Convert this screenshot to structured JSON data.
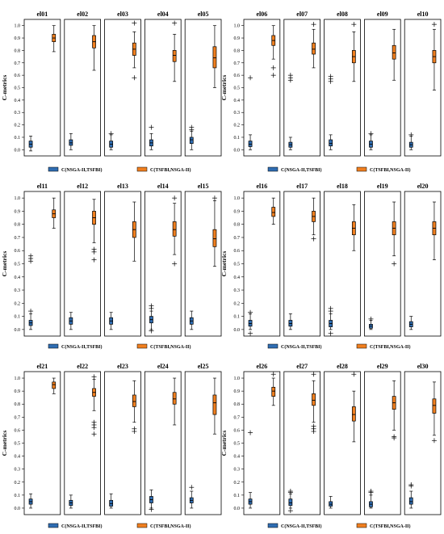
{
  "chart_data": [
    {
      "type": "box",
      "ylabel": "C-metrics",
      "yticks": [
        "0.0",
        "0.1",
        "0.2",
        "0.3",
        "0.4",
        "0.5",
        "0.6",
        "0.7",
        "0.8",
        "0.9",
        "1.0"
      ],
      "ylim": [
        -0.05,
        1.05
      ],
      "legend": [
        "C(NSGA-II,TSFBI)",
        "C(TSFBI,NSGA-II)"
      ],
      "colors": [
        "#2f6db2",
        "#f07f1f"
      ],
      "panels": [
        {
          "name": "el01",
          "a": {
            "wl": -0.01,
            "q1": 0.02,
            "med": 0.045,
            "q3": 0.07,
            "wh": 0.11,
            "fl": []
          },
          "b": {
            "wl": 0.79,
            "q1": 0.87,
            "med": 0.9,
            "q3": 0.93,
            "wh": 1.0,
            "fl": []
          }
        },
        {
          "name": "el02",
          "a": {
            "wl": 0.0,
            "q1": 0.035,
            "med": 0.055,
            "q3": 0.08,
            "wh": 0.13,
            "fl": []
          },
          "b": {
            "wl": 0.64,
            "q1": 0.82,
            "med": 0.87,
            "q3": 0.92,
            "wh": 1.0,
            "fl": []
          }
        },
        {
          "name": "el03",
          "a": {
            "wl": 0.0,
            "q1": 0.02,
            "med": 0.045,
            "q3": 0.07,
            "wh": 0.12,
            "fl": [
              0.13
            ]
          },
          "b": {
            "wl": 0.66,
            "q1": 0.76,
            "med": 0.81,
            "q3": 0.86,
            "wh": 0.95,
            "fl": [
              0.58,
              1.02
            ]
          }
        },
        {
          "name": "el04",
          "a": {
            "wl": 0.0,
            "q1": 0.03,
            "med": 0.055,
            "q3": 0.08,
            "wh": 0.13,
            "fl": [
              0.18
            ]
          },
          "b": {
            "wl": 0.55,
            "q1": 0.71,
            "med": 0.76,
            "q3": 0.8,
            "wh": 0.93,
            "fl": [
              1.02
            ]
          }
        },
        {
          "name": "el05",
          "a": {
            "wl": 0.0,
            "q1": 0.05,
            "med": 0.08,
            "q3": 0.1,
            "wh": 0.15,
            "fl": [
              0.16,
              0.18
            ]
          },
          "b": {
            "wl": 0.5,
            "q1": 0.66,
            "med": 0.74,
            "q3": 0.83,
            "wh": 1.0,
            "fl": []
          }
        }
      ]
    },
    {
      "type": "box",
      "ylabel": "C-metrics",
      "yticks": [
        "0.0",
        "0.1",
        "0.2",
        "0.3",
        "0.4",
        "0.5",
        "0.6",
        "0.7",
        "0.8",
        "0.9",
        "1.0"
      ],
      "ylim": [
        -0.05,
        1.05
      ],
      "legend": [
        "C(NSGA-II,TSFBI)",
        "C(TSFBI,NSGA-II)"
      ],
      "colors": [
        "#2f6db2",
        "#f07f1f"
      ],
      "panels": [
        {
          "name": "el06",
          "a": {
            "wl": 0.0,
            "q1": 0.025,
            "med": 0.045,
            "q3": 0.07,
            "wh": 0.12,
            "fl": [
              0.58
            ]
          },
          "b": {
            "wl": 0.73,
            "q1": 0.84,
            "med": 0.88,
            "q3": 0.92,
            "wh": 1.0,
            "fl": [
              0.6,
              0.66
            ]
          }
        },
        {
          "name": "el07",
          "a": {
            "wl": 0.0,
            "q1": 0.02,
            "med": 0.04,
            "q3": 0.06,
            "wh": 0.1,
            "fl": [
              0.56,
              0.58,
              0.6
            ]
          },
          "b": {
            "wl": 0.66,
            "q1": 0.77,
            "med": 0.81,
            "q3": 0.86,
            "wh": 0.97,
            "fl": [
              1.01
            ]
          }
        },
        {
          "name": "el08",
          "a": {
            "wl": 0.0,
            "q1": 0.03,
            "med": 0.05,
            "q3": 0.08,
            "wh": 0.12,
            "fl": [
              0.55,
              0.57,
              0.59
            ]
          },
          "b": {
            "wl": 0.55,
            "q1": 0.7,
            "med": 0.75,
            "q3": 0.8,
            "wh": 0.95,
            "fl": [
              1.01
            ]
          }
        },
        {
          "name": "el09",
          "a": {
            "wl": 0.0,
            "q1": 0.02,
            "med": 0.045,
            "q3": 0.07,
            "wh": 0.12,
            "fl": [
              0.13
            ]
          },
          "b": {
            "wl": 0.56,
            "q1": 0.73,
            "med": 0.78,
            "q3": 0.84,
            "wh": 0.97,
            "fl": []
          }
        },
        {
          "name": "el10",
          "a": {
            "wl": 0.0,
            "q1": 0.02,
            "med": 0.04,
            "q3": 0.06,
            "wh": 0.11,
            "fl": [
              0.12
            ]
          },
          "b": {
            "wl": 0.48,
            "q1": 0.7,
            "med": 0.75,
            "q3": 0.8,
            "wh": 0.97,
            "fl": [
              1.01
            ]
          }
        }
      ]
    },
    {
      "type": "box",
      "ylabel": "C-metrics",
      "yticks": [
        "0.0",
        "0.1",
        "0.2",
        "0.3",
        "0.4",
        "0.5",
        "0.6",
        "0.7",
        "0.8",
        "0.9",
        "1.0"
      ],
      "ylim": [
        -0.05,
        1.05
      ],
      "legend": [
        "C(NSGA-II,TSFBI)",
        "C(TSFBI,NSGA-II)"
      ],
      "colors": [
        "#2f6db2",
        "#f07f1f"
      ],
      "panels": [
        {
          "name": "el11",
          "a": {
            "wl": 0.0,
            "q1": 0.03,
            "med": 0.05,
            "q3": 0.07,
            "wh": 0.12,
            "fl": [
              0.14,
              0.52,
              0.54,
              0.56
            ]
          },
          "b": {
            "wl": 0.77,
            "q1": 0.85,
            "med": 0.88,
            "q3": 0.91,
            "wh": 1.0,
            "fl": []
          }
        },
        {
          "name": "el12",
          "a": {
            "wl": 0.0,
            "q1": 0.04,
            "med": 0.065,
            "q3": 0.09,
            "wh": 0.13,
            "fl": []
          },
          "b": {
            "wl": 0.66,
            "q1": 0.8,
            "med": 0.85,
            "q3": 0.9,
            "wh": 0.99,
            "fl": [
              0.53,
              0.59,
              0.61
            ]
          }
        },
        {
          "name": "el13",
          "a": {
            "wl": 0.0,
            "q1": 0.04,
            "med": 0.065,
            "q3": 0.09,
            "wh": 0.13,
            "fl": []
          },
          "b": {
            "wl": 0.52,
            "q1": 0.7,
            "med": 0.76,
            "q3": 0.82,
            "wh": 0.97,
            "fl": []
          }
        },
        {
          "name": "el14",
          "a": {
            "wl": 0.0,
            "q1": 0.05,
            "med": 0.075,
            "q3": 0.1,
            "wh": 0.14,
            "fl": [
              0.16,
              0.18,
              -0.01
            ]
          },
          "b": {
            "wl": 0.57,
            "q1": 0.71,
            "med": 0.76,
            "q3": 0.82,
            "wh": 0.96,
            "fl": [
              0.5,
              1.0
            ]
          }
        },
        {
          "name": "el15",
          "a": {
            "wl": 0.0,
            "q1": 0.04,
            "med": 0.065,
            "q3": 0.09,
            "wh": 0.14,
            "fl": []
          },
          "b": {
            "wl": 0.48,
            "q1": 0.63,
            "med": 0.69,
            "q3": 0.76,
            "wh": 0.98,
            "fl": [
              1.0
            ]
          }
        }
      ]
    },
    {
      "type": "box",
      "ylabel": "C-metrics",
      "yticks": [
        "0.0",
        "0.1",
        "0.2",
        "0.3",
        "0.4",
        "0.5",
        "0.6",
        "0.7",
        "0.8",
        "0.9",
        "1.0"
      ],
      "ylim": [
        -0.05,
        1.05
      ],
      "legend": [
        "C(NSGA-II,TSFBI)",
        "C(TSFBI,NSGA-II)"
      ],
      "colors": [
        "#2f6db2",
        "#f07f1f"
      ],
      "panels": [
        {
          "name": "el16",
          "a": {
            "wl": 0.0,
            "q1": 0.025,
            "med": 0.045,
            "q3": 0.07,
            "wh": 0.12,
            "fl": [
              0.13,
              -0.03
            ]
          },
          "b": {
            "wl": 0.8,
            "q1": 0.86,
            "med": 0.89,
            "q3": 0.93,
            "wh": 1.0,
            "fl": []
          }
        },
        {
          "name": "el17",
          "a": {
            "wl": 0.0,
            "q1": 0.025,
            "med": 0.045,
            "q3": 0.07,
            "wh": 0.12,
            "fl": []
          },
          "b": {
            "wl": 0.72,
            "q1": 0.82,
            "med": 0.86,
            "q3": 0.9,
            "wh": 1.0,
            "fl": [
              0.69
            ]
          }
        },
        {
          "name": "el18",
          "a": {
            "wl": 0.0,
            "q1": 0.02,
            "med": 0.045,
            "q3": 0.07,
            "wh": 0.12,
            "fl": [
              0.14,
              0.16,
              -0.03
            ]
          },
          "b": {
            "wl": 0.6,
            "q1": 0.72,
            "med": 0.77,
            "q3": 0.82,
            "wh": 0.95,
            "fl": []
          }
        },
        {
          "name": "el19",
          "a": {
            "wl": 0.0,
            "q1": 0.01,
            "med": 0.025,
            "q3": 0.04,
            "wh": 0.07,
            "fl": [
              0.08
            ]
          },
          "b": {
            "wl": 0.56,
            "q1": 0.72,
            "med": 0.77,
            "q3": 0.82,
            "wh": 0.97,
            "fl": [
              0.5
            ]
          }
        },
        {
          "name": "el20",
          "a": {
            "wl": 0.0,
            "q1": 0.02,
            "med": 0.04,
            "q3": 0.06,
            "wh": 0.1,
            "fl": []
          },
          "b": {
            "wl": 0.53,
            "q1": 0.72,
            "med": 0.77,
            "q3": 0.82,
            "wh": 0.97,
            "fl": []
          }
        }
      ]
    },
    {
      "type": "box",
      "ylabel": "C-metrics",
      "yticks": [
        "0.0",
        "0.1",
        "0.2",
        "0.3",
        "0.4",
        "0.5",
        "0.6",
        "0.7",
        "0.8",
        "0.9",
        "1.0"
      ],
      "ylim": [
        -0.05,
        1.05
      ],
      "legend": [
        "C(NSGA-II,TSFBI)",
        "C(TSFBI,NSGA-II)"
      ],
      "colors": [
        "#2f6db2",
        "#f07f1f"
      ],
      "panels": [
        {
          "name": "el21",
          "a": {
            "wl": 0.0,
            "q1": 0.03,
            "med": 0.05,
            "q3": 0.07,
            "wh": 0.11,
            "fl": []
          },
          "b": {
            "wl": 0.88,
            "q1": 0.92,
            "med": 0.95,
            "q3": 0.97,
            "wh": 1.0,
            "fl": []
          }
        },
        {
          "name": "el22",
          "a": {
            "wl": 0.0,
            "q1": 0.02,
            "med": 0.04,
            "q3": 0.06,
            "wh": 0.1,
            "fl": []
          },
          "b": {
            "wl": 0.75,
            "q1": 0.86,
            "med": 0.89,
            "q3": 0.92,
            "wh": 0.99,
            "fl": [
              0.57,
              0.62,
              0.64,
              0.66,
              1.01
            ]
          }
        },
        {
          "name": "el23",
          "a": {
            "wl": 0.0,
            "q1": 0.015,
            "med": 0.035,
            "q3": 0.06,
            "wh": 0.11,
            "fl": []
          },
          "b": {
            "wl": 0.66,
            "q1": 0.78,
            "med": 0.82,
            "q3": 0.87,
            "wh": 0.98,
            "fl": [
              0.59,
              0.61
            ]
          }
        },
        {
          "name": "el24",
          "a": {
            "wl": 0.0,
            "q1": 0.04,
            "med": 0.065,
            "q3": 0.09,
            "wh": 0.14,
            "fl": [
              -0.01
            ]
          },
          "b": {
            "wl": 0.64,
            "q1": 0.8,
            "med": 0.84,
            "q3": 0.89,
            "wh": 1.0,
            "fl": []
          }
        },
        {
          "name": "el25",
          "a": {
            "wl": 0.0,
            "q1": 0.04,
            "med": 0.06,
            "q3": 0.08,
            "wh": 0.13,
            "fl": [
              0.16
            ]
          },
          "b": {
            "wl": 0.57,
            "q1": 0.72,
            "med": 0.81,
            "q3": 0.87,
            "wh": 1.0,
            "fl": []
          }
        }
      ]
    },
    {
      "type": "box",
      "ylabel": "C-metrics",
      "yticks": [
        "0.0",
        "0.1",
        "0.2",
        "0.3",
        "0.4",
        "0.5",
        "0.6",
        "0.7",
        "0.8",
        "0.9",
        "1.0"
      ],
      "ylim": [
        -0.05,
        1.05
      ],
      "legend": [
        "C(NSGA-II,TSFBI)",
        "C(TSFBI,NSGA-II)"
      ],
      "colors": [
        "#2f6db2",
        "#f07f1f"
      ],
      "panels": [
        {
          "name": "el26",
          "a": {
            "wl": 0.0,
            "q1": 0.03,
            "med": 0.05,
            "q3": 0.07,
            "wh": 0.12,
            "fl": [
              0.58
            ]
          },
          "b": {
            "wl": 0.79,
            "q1": 0.86,
            "med": 0.9,
            "q3": 0.93,
            "wh": 1.0,
            "fl": [
              1.03
            ]
          }
        },
        {
          "name": "el27",
          "a": {
            "wl": 0.0,
            "q1": 0.02,
            "med": 0.04,
            "q3": 0.07,
            "wh": 0.11,
            "fl": [
              0.12,
              0.13,
              -0.02
            ]
          },
          "b": {
            "wl": 0.66,
            "q1": 0.79,
            "med": 0.83,
            "q3": 0.88,
            "wh": 0.98,
            "fl": [
              0.59,
              0.61,
              0.63,
              1.03
            ]
          }
        },
        {
          "name": "el28",
          "a": {
            "wl": 0.0,
            "q1": 0.015,
            "med": 0.03,
            "q3": 0.05,
            "wh": 0.09,
            "fl": []
          },
          "b": {
            "wl": 0.51,
            "q1": 0.67,
            "med": 0.72,
            "q3": 0.78,
            "wh": 0.9,
            "fl": [
              1.03
            ]
          }
        },
        {
          "name": "el29",
          "a": {
            "wl": 0.0,
            "q1": 0.01,
            "med": 0.03,
            "q3": 0.05,
            "wh": 0.1,
            "fl": [
              0.12,
              0.13
            ]
          },
          "b": {
            "wl": 0.6,
            "q1": 0.76,
            "med": 0.81,
            "q3": 0.86,
            "wh": 0.98,
            "fl": [
              0.54,
              0.55
            ]
          }
        },
        {
          "name": "el30",
          "a": {
            "wl": 0.0,
            "q1": 0.03,
            "med": 0.05,
            "q3": 0.08,
            "wh": 0.13,
            "fl": [
              0.17,
              0.18
            ]
          },
          "b": {
            "wl": 0.56,
            "q1": 0.73,
            "med": 0.79,
            "q3": 0.84,
            "wh": 0.97,
            "fl": [
              0.52
            ]
          }
        }
      ]
    }
  ]
}
